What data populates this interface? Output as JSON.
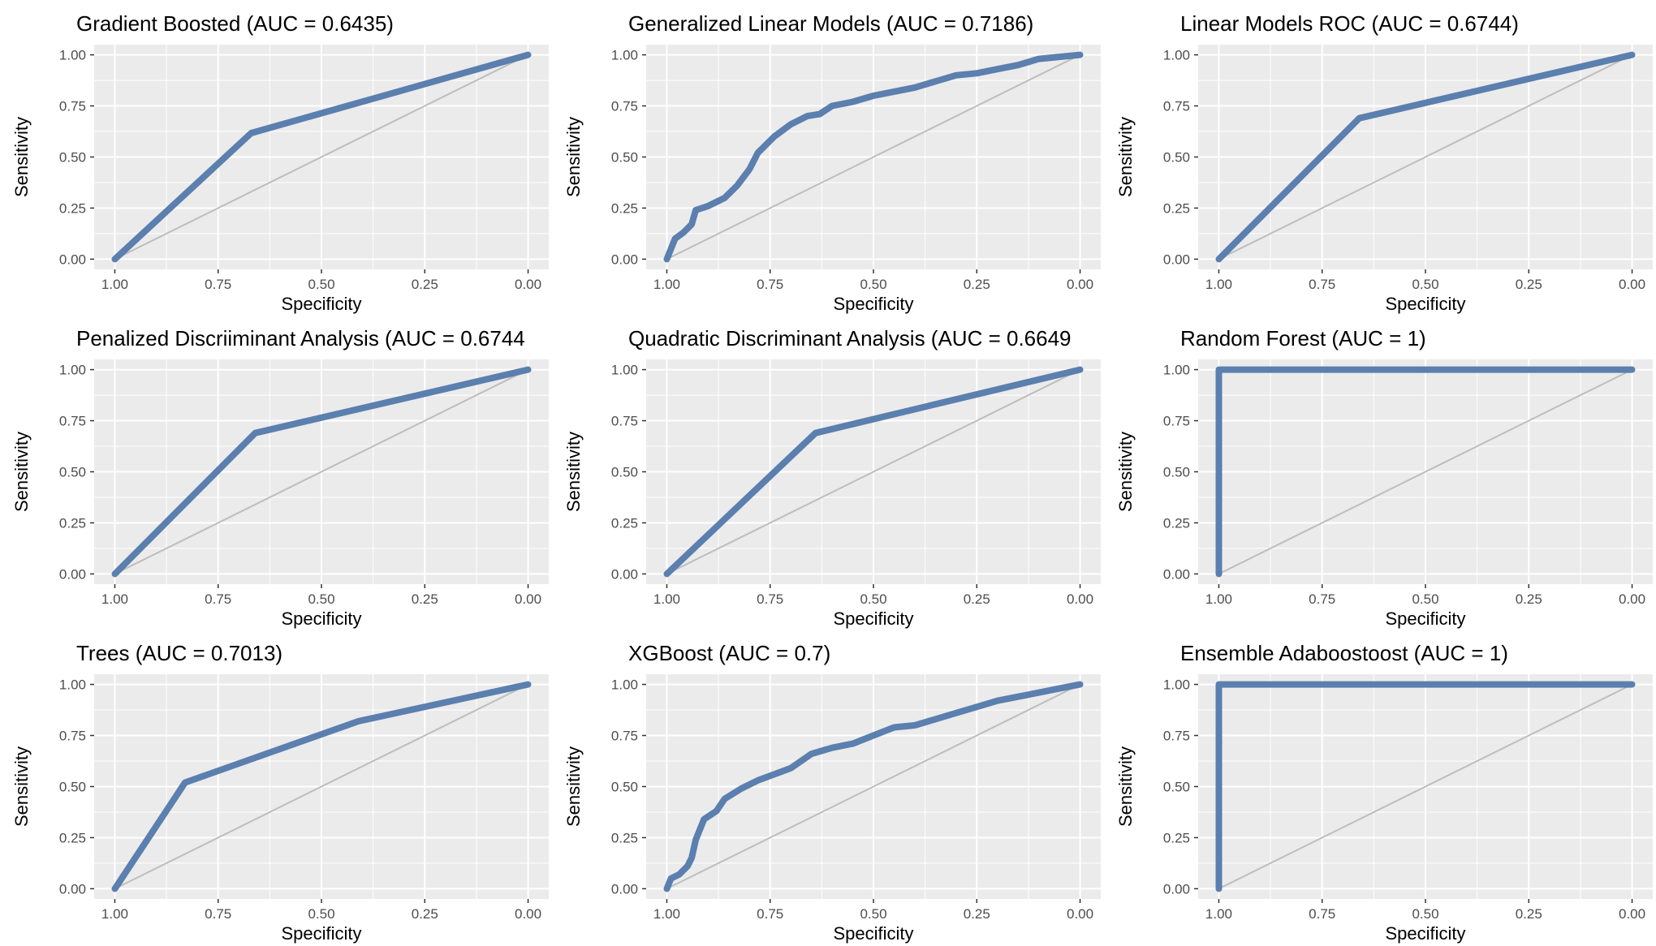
{
  "colors": {
    "curve": "#5B7FAE",
    "diagonal": "#BDBDBD",
    "panel_bg": "#EBEBEB",
    "grid": "#FFFFFF",
    "text": "#000000",
    "tick_text": "#4D4D4D"
  },
  "chart_data": [
    {
      "type": "line",
      "title": "Gradient Boosted (AUC = 0.6435)",
      "xlabel": "Specificity",
      "ylabel": "Sensitivity",
      "xlim": [
        1,
        0
      ],
      "ylim": [
        0,
        1
      ],
      "x_ticks": [
        "1.00",
        "0.75",
        "0.50",
        "0.25",
        "0.00"
      ],
      "y_ticks": [
        "0.00",
        "0.25",
        "0.50",
        "0.75",
        "1.00"
      ],
      "series": [
        {
          "name": "ROC",
          "specificity": [
            1.0,
            0.67,
            0.0
          ],
          "sensitivity": [
            0.0,
            0.617,
            1.0
          ]
        }
      ]
    },
    {
      "type": "line",
      "title": "Generalized Linear Models (AUC = 0.7186)",
      "xlabel": "Specificity",
      "ylabel": "Sensitivity",
      "xlim": [
        1,
        0
      ],
      "ylim": [
        0,
        1
      ],
      "x_ticks": [
        "1.00",
        "0.75",
        "0.50",
        "0.25",
        "0.00"
      ],
      "y_ticks": [
        "0.00",
        "0.25",
        "0.50",
        "0.75",
        "1.00"
      ],
      "series": [
        {
          "name": "ROC",
          "specificity": [
            1.0,
            0.99,
            0.98,
            0.96,
            0.94,
            0.93,
            0.9,
            0.86,
            0.83,
            0.8,
            0.78,
            0.76,
            0.74,
            0.7,
            0.66,
            0.63,
            0.6,
            0.55,
            0.5,
            0.45,
            0.4,
            0.35,
            0.3,
            0.25,
            0.2,
            0.15,
            0.1,
            0.05,
            0.0
          ],
          "sensitivity": [
            0.0,
            0.05,
            0.1,
            0.13,
            0.17,
            0.24,
            0.26,
            0.3,
            0.36,
            0.44,
            0.52,
            0.56,
            0.6,
            0.66,
            0.7,
            0.71,
            0.75,
            0.77,
            0.8,
            0.82,
            0.84,
            0.87,
            0.9,
            0.91,
            0.93,
            0.95,
            0.98,
            0.99,
            1.0
          ]
        }
      ]
    },
    {
      "type": "line",
      "title": "Linear Models ROC (AUC = 0.6744)",
      "xlabel": "Specificity",
      "ylabel": "Sensitivity",
      "xlim": [
        1,
        0
      ],
      "ylim": [
        0,
        1
      ],
      "x_ticks": [
        "1.00",
        "0.75",
        "0.50",
        "0.25",
        "0.00"
      ],
      "y_ticks": [
        "0.00",
        "0.25",
        "0.50",
        "0.75",
        "1.00"
      ],
      "series": [
        {
          "name": "ROC",
          "specificity": [
            1.0,
            0.66,
            0.0
          ],
          "sensitivity": [
            0.0,
            0.69,
            1.0
          ]
        }
      ]
    },
    {
      "type": "line",
      "title": "Penalized Discriiminant Analysis (AUC = 0.6744",
      "xlabel": "Specificity",
      "ylabel": "Sensitivity",
      "xlim": [
        1,
        0
      ],
      "ylim": [
        0,
        1
      ],
      "x_ticks": [
        "1.00",
        "0.75",
        "0.50",
        "0.25",
        "0.00"
      ],
      "y_ticks": [
        "0.00",
        "0.25",
        "0.50",
        "0.75",
        "1.00"
      ],
      "series": [
        {
          "name": "ROC",
          "specificity": [
            1.0,
            0.66,
            0.0
          ],
          "sensitivity": [
            0.0,
            0.69,
            1.0
          ]
        }
      ]
    },
    {
      "type": "line",
      "title": "Quadratic Discriminant Analysis (AUC = 0.6649",
      "xlabel": "Specificity",
      "ylabel": "Sensitivity",
      "xlim": [
        1,
        0
      ],
      "ylim": [
        0,
        1
      ],
      "x_ticks": [
        "1.00",
        "0.75",
        "0.50",
        "0.25",
        "0.00"
      ],
      "y_ticks": [
        "0.00",
        "0.25",
        "0.50",
        "0.75",
        "1.00"
      ],
      "series": [
        {
          "name": "ROC",
          "specificity": [
            1.0,
            0.64,
            0.0
          ],
          "sensitivity": [
            0.0,
            0.69,
            1.0
          ]
        }
      ]
    },
    {
      "type": "line",
      "title": "Random Forest (AUC = 1)",
      "xlabel": "Specificity",
      "ylabel": "Sensitivity",
      "xlim": [
        1,
        0
      ],
      "ylim": [
        0,
        1
      ],
      "x_ticks": [
        "1.00",
        "0.75",
        "0.50",
        "0.25",
        "0.00"
      ],
      "y_ticks": [
        "0.00",
        "0.25",
        "0.50",
        "0.75",
        "1.00"
      ],
      "series": [
        {
          "name": "ROC",
          "specificity": [
            1.0,
            1.0,
            0.0
          ],
          "sensitivity": [
            0.0,
            1.0,
            1.0
          ]
        }
      ]
    },
    {
      "type": "line",
      "title": "Trees (AUC = 0.7013)",
      "xlabel": "Specificity",
      "ylabel": "Sensitivity",
      "xlim": [
        1,
        0
      ],
      "ylim": [
        0,
        1
      ],
      "x_ticks": [
        "1.00",
        "0.75",
        "0.50",
        "0.25",
        "0.00"
      ],
      "y_ticks": [
        "0.00",
        "0.25",
        "0.50",
        "0.75",
        "1.00"
      ],
      "series": [
        {
          "name": "ROC",
          "specificity": [
            1.0,
            0.83,
            0.41,
            0.0
          ],
          "sensitivity": [
            0.0,
            0.52,
            0.82,
            1.0
          ]
        }
      ]
    },
    {
      "type": "line",
      "title": "XGBoost (AUC = 0.7)",
      "xlabel": "Specificity",
      "ylabel": "Sensitivity",
      "xlim": [
        1,
        0
      ],
      "ylim": [
        0,
        1
      ],
      "x_ticks": [
        "1.00",
        "0.75",
        "0.50",
        "0.25",
        "0.00"
      ],
      "y_ticks": [
        "0.00",
        "0.25",
        "0.50",
        "0.75",
        "1.00"
      ],
      "series": [
        {
          "name": "ROC",
          "specificity": [
            1.0,
            0.99,
            0.97,
            0.95,
            0.94,
            0.93,
            0.91,
            0.88,
            0.86,
            0.82,
            0.78,
            0.74,
            0.7,
            0.65,
            0.6,
            0.55,
            0.5,
            0.45,
            0.4,
            0.35,
            0.3,
            0.25,
            0.2,
            0.15,
            0.1,
            0.05,
            0.0
          ],
          "sensitivity": [
            0.0,
            0.05,
            0.07,
            0.11,
            0.15,
            0.24,
            0.34,
            0.38,
            0.44,
            0.49,
            0.53,
            0.56,
            0.59,
            0.66,
            0.69,
            0.71,
            0.75,
            0.79,
            0.8,
            0.83,
            0.86,
            0.89,
            0.92,
            0.94,
            0.96,
            0.98,
            1.0
          ]
        }
      ]
    },
    {
      "type": "line",
      "title": "Ensemble Adaboostoost (AUC = 1)",
      "xlabel": "Specificity",
      "ylabel": "Sensitivity",
      "xlim": [
        1,
        0
      ],
      "ylim": [
        0,
        1
      ],
      "x_ticks": [
        "1.00",
        "0.75",
        "0.50",
        "0.25",
        "0.00"
      ],
      "y_ticks": [
        "0.00",
        "0.25",
        "0.50",
        "0.75",
        "1.00"
      ],
      "series": [
        {
          "name": "ROC",
          "specificity": [
            1.0,
            1.0,
            0.0
          ],
          "sensitivity": [
            0.0,
            1.0,
            1.0
          ]
        }
      ]
    }
  ]
}
